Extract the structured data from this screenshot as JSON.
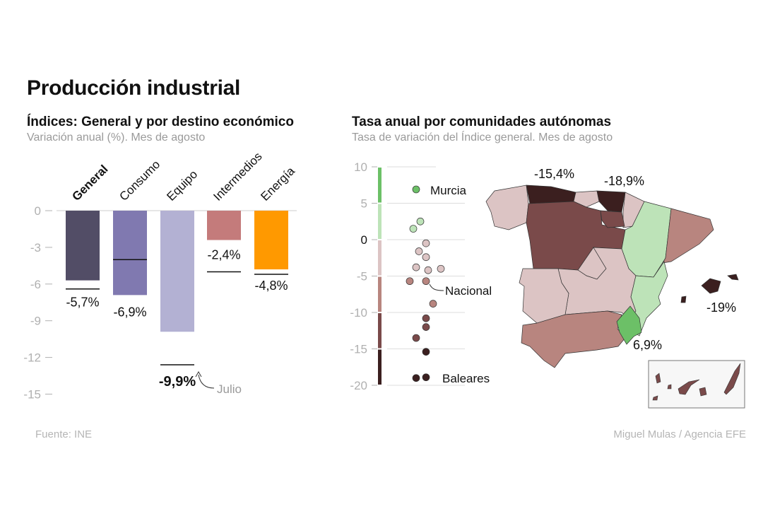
{
  "title": "Producción industrial",
  "left": {
    "subtitle": "Índices: General y por destino económico",
    "description": "Variación anual (%). Mes de agosto",
    "julio_label": "Julio"
  },
  "right": {
    "subtitle": "Tasa anual por comunidades autónomas",
    "description": "Tasa de variación del Índice general. Mes de agosto"
  },
  "footer": {
    "source": "Fuente: INE",
    "credit": "Miguel Mulas / Agencia EFE"
  },
  "map": {
    "labels": {
      "asturias": "-15,4%",
      "pais_vasco": "-18,9%",
      "baleares": "-19%",
      "murcia": "6,9%"
    },
    "colors": {
      "dark": "#3b1f1f",
      "medium_dark": "#7a4a4a",
      "medium": "#b8857f",
      "light_pink": "#dcc4c4",
      "light_green": "#bde3b8",
      "green": "#6cc067"
    }
  },
  "chart_data": [
    {
      "type": "bar",
      "categories": [
        "General",
        "Consumo",
        "Equipo",
        "Intermedios",
        "Energía"
      ],
      "values": [
        -5.7,
        -6.9,
        -9.9,
        -2.4,
        -4.8
      ],
      "data_labels": [
        "-5,7%",
        "-6,9%",
        "-9,9%",
        "-2,4%",
        "-4,8%"
      ],
      "series": [
        {
          "name": "Agosto",
          "values": [
            -5.7,
            -6.9,
            -9.9,
            -2.4,
            -4.8
          ]
        },
        {
          "name": "Julio",
          "values": [
            -6.4,
            -4.0,
            -12.6,
            -5.0,
            -5.2
          ]
        }
      ],
      "colors": [
        "#524d66",
        "#8079b0",
        "#b3b1d3",
        "#c47b7b",
        "#ff9900"
      ],
      "yticks": [
        "0",
        "-3",
        "-6",
        "-9",
        "-12",
        "-15"
      ],
      "ylim": [
        -15,
        0
      ],
      "grid": false
    },
    {
      "type": "scatter",
      "yticks": [
        "10",
        "5",
        "0",
        "-5",
        "-10",
        "-15",
        "-20"
      ],
      "ylim": [
        -20,
        10
      ],
      "color_bands": [
        {
          "from": 5,
          "to": 10,
          "color": "#6cc067"
        },
        {
          "from": 0,
          "to": 5,
          "color": "#bde3b8"
        },
        {
          "from": -5,
          "to": 0,
          "color": "#dcc4c4"
        },
        {
          "from": -10,
          "to": -5,
          "color": "#b8857f"
        },
        {
          "from": -15,
          "to": -10,
          "color": "#7a4a4a"
        },
        {
          "from": -20,
          "to": -15,
          "color": "#3b1f1f"
        }
      ],
      "points": [
        {
          "value": 6.9,
          "label": "Murcia"
        },
        {
          "value": 2.5
        },
        {
          "value": 1.5
        },
        {
          "value": -0.5
        },
        {
          "value": -1.6
        },
        {
          "value": -2.4
        },
        {
          "value": -3.8
        },
        {
          "value": -4.2
        },
        {
          "value": -4.0
        },
        {
          "value": -5.7
        },
        {
          "value": -5.7,
          "label": "Nacional"
        },
        {
          "value": -8.8
        },
        {
          "value": -10.8
        },
        {
          "value": -12.0
        },
        {
          "value": -13.5
        },
        {
          "value": -15.4
        },
        {
          "value": -19.0,
          "label": "Baleares"
        },
        {
          "value": -18.9
        }
      ],
      "grid": true
    }
  ]
}
